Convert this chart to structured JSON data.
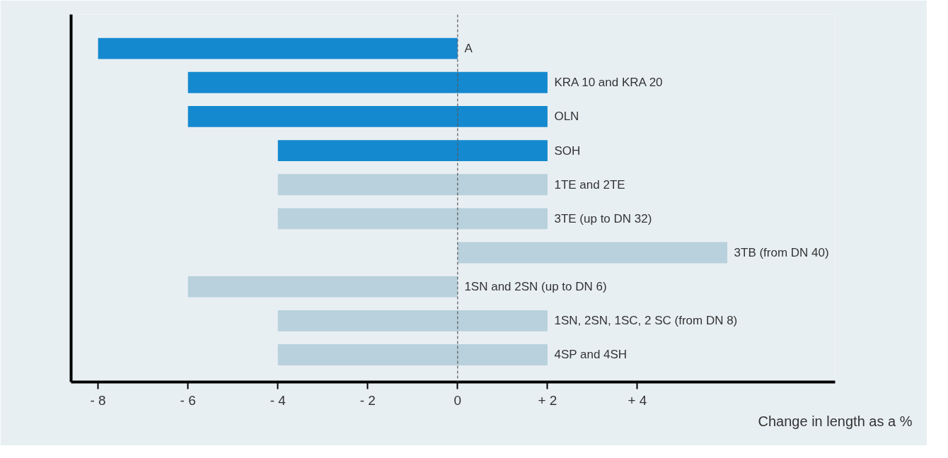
{
  "chart_data": {
    "type": "bar",
    "orientation": "horizontal",
    "xlabel": "Change in length as a %",
    "categories": [
      "A",
      "KRA 10 and KRA 20",
      "OLN",
      "SOH",
      "1TE and 2TE",
      "3TE (up to DN 32)",
      "3TB (from DN 40)",
      "1SN and 2SN (up to DN 6)",
      "1SN, 2SN, 1SC, 2 SC  (from DN 8)",
      "4SP and 4SH"
    ],
    "base": [
      -8,
      -6,
      -6,
      -4,
      -4,
      -4,
      0,
      -6,
      -4,
      -4
    ],
    "values": [
      8,
      8,
      8,
      6,
      6,
      6,
      6,
      6,
      6,
      6
    ],
    "colors": [
      "#1489cf",
      "#1489cf",
      "#1489cf",
      "#1489cf",
      "#b8d1dc",
      "#b8d1dc",
      "#b8d1dc",
      "#b8d1dc",
      "#b8d1dc",
      "#b8d1dc"
    ],
    "xlim": [
      -8.6,
      8.4
    ],
    "xticks": [
      {
        "value": -8,
        "label": "- 8"
      },
      {
        "value": -6,
        "label": "- 6"
      },
      {
        "value": -4,
        "label": "- 4"
      },
      {
        "value": -2,
        "label": "- 2"
      },
      0,
      {
        "value": 2,
        "label": "+ 2"
      },
      {
        "value": 4,
        "label": "+ 4"
      }
    ],
    "ref_lines": [
      {
        "axis": "x",
        "value": 0,
        "line_style": "dashed",
        "color": "#555555"
      }
    ],
    "grid": false,
    "tick_labels": "x"
  }
}
